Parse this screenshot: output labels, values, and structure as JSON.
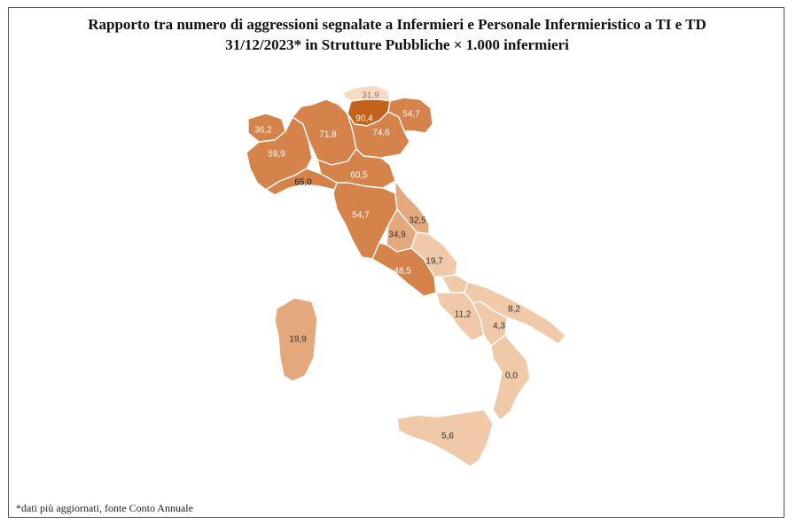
{
  "title_line1": "Rapporto tra numero di aggressioni segnalate a Infermieri e Personale Infermieristico a TI e TD",
  "title_line2": "31/12/2023* in Strutture Pubbliche × 1.000 infermieri",
  "footnote": "*dati più aggiornati, fonte Conto Annuale",
  "colors": {
    "very_high": "#c4621c",
    "high": "#d5834a",
    "mid": "#e3a97d",
    "low": "#f0c9a8",
    "very_low": "#f6dcc5"
  },
  "regions": [
    {
      "id": "valle-d-aosta",
      "value": "36,2",
      "level": "high"
    },
    {
      "id": "piemonte",
      "value": "59,9",
      "level": "high"
    },
    {
      "id": "liguria",
      "value": "65,0",
      "level": "high"
    },
    {
      "id": "lombardia",
      "value": "71,8",
      "level": "high"
    },
    {
      "id": "alto-adige",
      "value": "31,9",
      "level": "very_low"
    },
    {
      "id": "trentino",
      "value": "90,4",
      "level": "very_high"
    },
    {
      "id": "veneto",
      "value": "74,6",
      "level": "high"
    },
    {
      "id": "friuli-venezia-giulia",
      "value": "54,7",
      "level": "high"
    },
    {
      "id": "emilia-romagna",
      "value": "60,5",
      "level": "high"
    },
    {
      "id": "toscana",
      "value": "54,7",
      "level": "high"
    },
    {
      "id": "marche",
      "value": "32,5",
      "level": "mid"
    },
    {
      "id": "umbria",
      "value": "34,9",
      "level": "mid"
    },
    {
      "id": "lazio",
      "value": "48,5",
      "level": "high"
    },
    {
      "id": "abruzzo",
      "value": "19,7",
      "level": "low"
    },
    {
      "id": "molise",
      "value": "",
      "level": "low"
    },
    {
      "id": "campania",
      "value": "11,2",
      "level": "low"
    },
    {
      "id": "puglia",
      "value": "8,2",
      "level": "low"
    },
    {
      "id": "basilicata",
      "value": "4,3",
      "level": "low"
    },
    {
      "id": "calabria",
      "value": "0,0",
      "level": "low"
    },
    {
      "id": "sicilia",
      "value": "5,6",
      "level": "low"
    },
    {
      "id": "sardegna",
      "value": "19,9",
      "level": "mid"
    }
  ]
}
